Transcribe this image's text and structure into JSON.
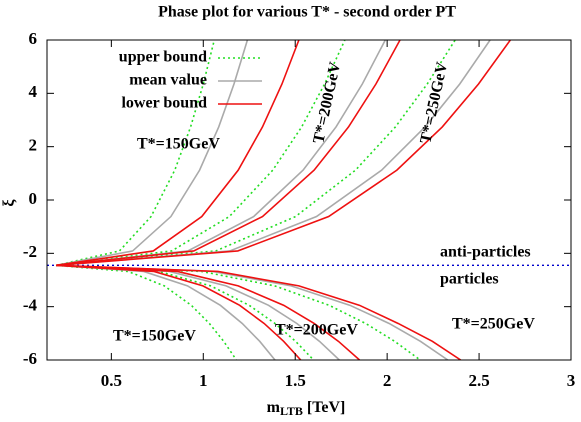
{
  "chart_data": {
    "type": "line",
    "title": "Phase plot for various T* - second order PT",
    "x_label": "m",
    "x_label_sub": "LTB",
    "x_label_unit": " [TeV]",
    "y_label": "ξ",
    "xlim": [
      0.15,
      3
    ],
    "ylim": [
      -6,
      6
    ],
    "xticks": [
      0.5,
      1,
      1.5,
      2,
      2.5,
      3
    ],
    "yticks": [
      -6,
      -4,
      -2,
      0,
      2,
      4,
      6
    ],
    "legend": "upper left",
    "series": [
      {
        "name": "upper bound",
        "color": "#22dd22",
        "dash": "dotted",
        "curves": [
          {
            "x": [
              0.2,
              0.544,
              0.716,
              0.845,
              0.931,
              1.0,
              1.06
            ],
            "values": [
              -2.45,
              -1.91,
              -0.62,
              1.12,
              2.74,
              4.35,
              6
            ]
          },
          {
            "x": [
              0.2,
              0.828,
              1.142,
              1.378,
              1.535,
              1.66,
              1.77
            ],
            "values": [
              -2.45,
              -1.91,
              -0.62,
              1.12,
              2.74,
              4.35,
              6
            ]
          },
          {
            "x": [
              0.2,
              1.068,
              1.502,
              1.828,
              2.045,
              2.218,
              2.37
            ],
            "values": [
              -2.45,
              -1.91,
              -0.62,
              1.12,
              2.74,
              4.35,
              6
            ]
          },
          {
            "x": [
              0.2,
              0.592,
              0.788,
              0.935,
              1.033,
              1.111,
              1.18
            ],
            "values": [
              -2.45,
              -2.68,
              -3.22,
              -3.95,
              -4.63,
              -5.3,
              -6
            ]
          },
          {
            "x": [
              0.2,
              0.76,
              1.04,
              1.25,
              1.39,
              1.502,
              1.6
            ],
            "values": [
              -2.45,
              -2.68,
              -3.22,
              -3.95,
              -4.63,
              -5.3,
              -6
            ]
          },
          {
            "x": [
              0.2,
              0.992,
              1.388,
              1.685,
              1.883,
              2.041,
              2.18
            ],
            "values": [
              -2.45,
              -2.68,
              -3.22,
              -3.95,
              -4.63,
              -5.3,
              -6
            ]
          }
        ]
      },
      {
        "name": "mean value",
        "color": "#aaaaaa",
        "dash": "solid",
        "curves": [
          {
            "x": [
              0.2,
              0.616,
              0.824,
              0.98,
              1.084,
              1.167,
              1.24
            ],
            "values": [
              -2.45,
              -1.91,
              -0.62,
              1.12,
              2.74,
              4.35,
              6
            ]
          },
          {
            "x": [
              0.2,
              0.916,
              1.274,
              1.543,
              1.722,
              1.865,
              1.99
            ],
            "values": [
              -2.45,
              -1.91,
              -0.62,
              1.12,
              2.74,
              4.35,
              6
            ]
          },
          {
            "x": [
              0.2,
              1.144,
              1.616,
              1.97,
              2.206,
              2.395,
              2.56
            ],
            "values": [
              -2.45,
              -1.91,
              -0.62,
              1.12,
              2.74,
              4.35,
              6
            ]
          },
          {
            "x": [
              0.2,
              0.676,
              0.914,
              1.093,
              1.212,
              1.307,
              1.39
            ],
            "values": [
              -2.45,
              -2.68,
              -3.22,
              -3.95,
              -4.63,
              -5.3,
              -6
            ]
          },
          {
            "x": [
              0.2,
              0.816,
              1.124,
              1.355,
              1.509,
              1.632,
              1.74
            ],
            "values": [
              -2.45,
              -2.68,
              -3.22,
              -3.95,
              -4.63,
              -5.3,
              -6
            ]
          },
          {
            "x": [
              0.2,
              1.052,
              1.478,
              1.798,
              2.011,
              2.181,
              2.33
            ],
            "values": [
              -2.45,
              -2.68,
              -3.22,
              -3.95,
              -4.63,
              -5.3,
              -6
            ]
          }
        ]
      },
      {
        "name": "lower bound",
        "color": "#ee1111",
        "dash": "solid",
        "curves": [
          {
            "x": [
              0.2,
              0.728,
              0.992,
              1.19,
              1.322,
              1.428,
              1.52
            ],
            "values": [
              -2.45,
              -1.91,
              -0.62,
              1.12,
              2.74,
              4.35,
              6
            ]
          },
          {
            "x": [
              0.2,
              0.948,
              1.322,
              1.603,
              1.79,
              1.939,
              2.07
            ],
            "values": [
              -2.45,
              -1.91,
              -0.62,
              1.12,
              2.74,
              4.35,
              6
            ]
          },
          {
            "x": [
              0.2,
              1.188,
              1.682,
              2.053,
              2.3,
              2.497,
              2.67
            ],
            "values": [
              -2.45,
              -1.91,
              -0.62,
              1.12,
              2.74,
              4.35,
              6
            ]
          },
          {
            "x": [
              0.2,
              0.732,
              0.998,
              1.198,
              1.331,
              1.437,
              1.53
            ],
            "values": [
              -2.45,
              -2.68,
              -3.22,
              -3.95,
              -4.63,
              -5.3,
              -6
            ]
          },
          {
            "x": [
              0.2,
              0.86,
              1.19,
              1.438,
              1.603,
              1.735,
              1.85
            ],
            "values": [
              -2.45,
              -2.68,
              -3.22,
              -3.95,
              -4.63,
              -5.3,
              -6
            ]
          },
          {
            "x": [
              0.2,
              1.08,
              1.52,
              1.85,
              2.06,
              2.246,
              2.4
            ],
            "values": [
              -2.45,
              -2.68,
              -3.22,
              -3.95,
              -4.63,
              -5.3,
              -6
            ]
          }
        ]
      }
    ],
    "reference_line": {
      "y": -2.45,
      "color": "#0000cc"
    },
    "annotations": [
      "T*=150GeV",
      "T*=200GeV",
      "T*=250GeV",
      "anti-particles",
      "particles",
      "T*=150GeV",
      "T*=200GeV",
      "T*=250GeV"
    ]
  }
}
